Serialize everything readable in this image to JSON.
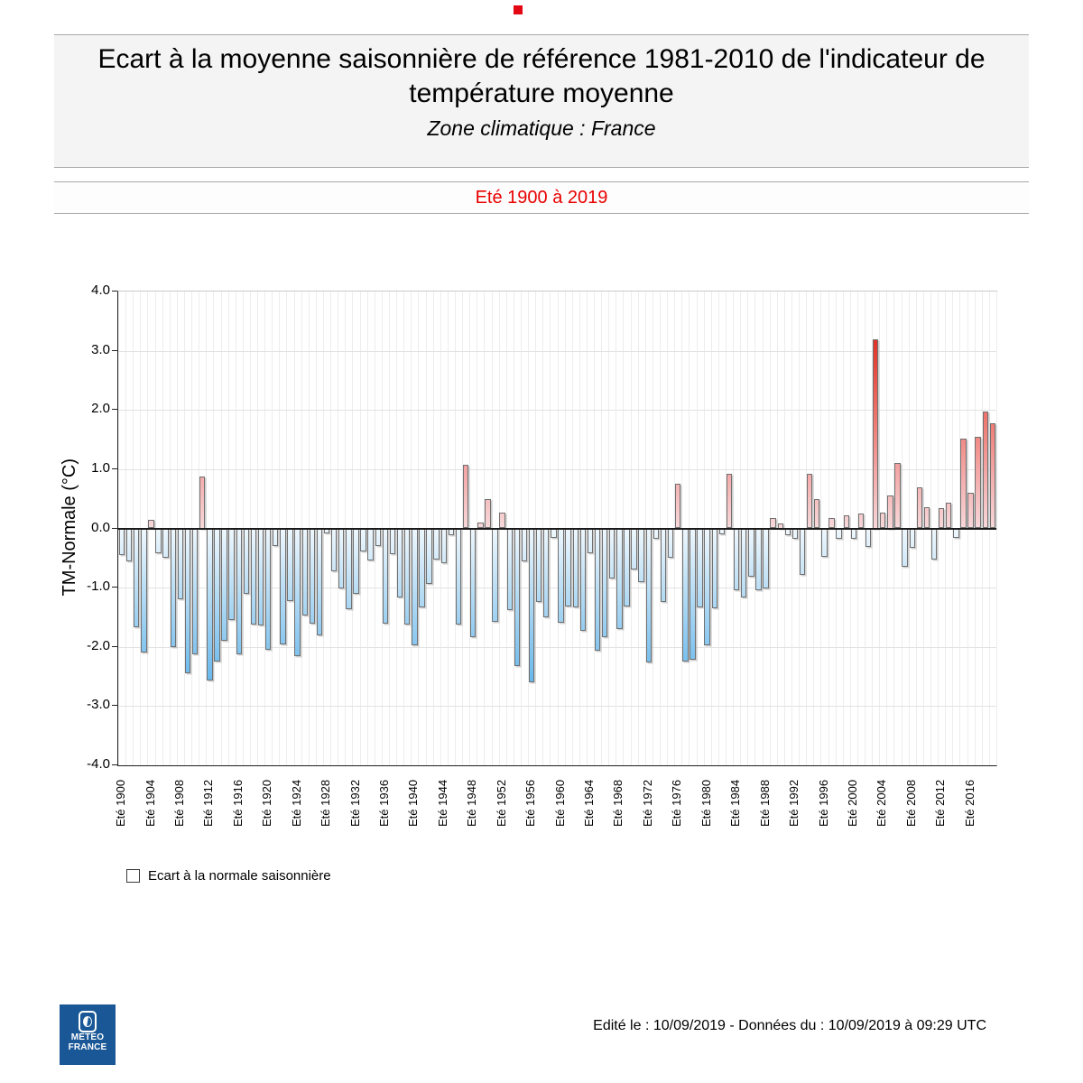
{
  "page": {
    "title": "Ecart à la moyenne saisonnière de référence 1981-2010 de l'indicateur de température moyenne",
    "subtitle": "Zone climatique : France",
    "period": "Eté 1900 à 2019",
    "footer": "Edité le : 10/09/2019 - Données du : 10/09/2019 à 09:29 UTC",
    "logo": {
      "line1": "METEO",
      "line2": "FRANCE",
      "bg_color": "#1a5796"
    }
  },
  "legend": {
    "label": "Ecart à la normale saisonnière"
  },
  "chart_data": {
    "type": "bar",
    "title": "Eté 1900 à 2019",
    "ylabel": "TM-Normale (°C)",
    "ylim": [
      -4.0,
      4.0
    ],
    "ytick_labels": [
      "4.0",
      "3.0",
      "2.0",
      "1.0",
      "0.0",
      "-1.0",
      "-2.0",
      "-3.0",
      "-4.0"
    ],
    "grid": true,
    "start_year": 1900,
    "end_year": 2019,
    "series_name": "Ecart à la normale saisonnière",
    "values": [
      -0.45,
      -0.55,
      -1.67,
      -2.09,
      0.15,
      -0.42,
      -0.5,
      -2.0,
      -1.2,
      -2.44,
      -2.13,
      0.88,
      -2.56,
      -2.24,
      -1.9,
      -1.54,
      -2.12,
      -1.11,
      -1.62,
      -1.64,
      -2.05,
      -0.3,
      -1.95,
      -1.23,
      -2.15,
      -1.47,
      -1.6,
      -1.8,
      -0.08,
      -0.73,
      -1.01,
      -1.37,
      -1.11,
      -0.39,
      -0.54,
      -0.29,
      -1.6,
      -0.44,
      -1.16,
      -1.62,
      -1.98,
      -1.34,
      -0.93,
      -0.52,
      -0.58,
      -0.12,
      -1.62,
      1.07,
      -1.83,
      0.1,
      0.5,
      -1.57,
      0.26,
      -1.38,
      -2.32,
      -0.55,
      -2.6,
      -1.24,
      -1.5,
      -0.16,
      -1.59,
      -1.32,
      -1.34,
      -1.73,
      -0.42,
      -2.06,
      -1.83,
      -0.85,
      -1.7,
      -1.32,
      -0.7,
      -0.9,
      -2.26,
      -0.18,
      -1.24,
      -0.5,
      0.76,
      -2.24,
      -2.21,
      -1.34,
      -1.98,
      -1.35,
      -0.1,
      0.92,
      -1.05,
      -1.17,
      -0.82,
      -1.05,
      -1.02,
      0.18,
      0.08,
      -0.11,
      -0.18,
      -0.78,
      0.92,
      0.5,
      -0.48,
      0.18,
      -0.18,
      0.22,
      -0.17,
      0.25,
      -0.31,
      3.2,
      0.26,
      0.56,
      1.11,
      -0.64,
      -0.32,
      0.7,
      0.36,
      -0.53,
      0.34,
      0.43,
      -0.16,
      1.51,
      0.6,
      1.55,
      1.98,
      1.77
    ],
    "xtick_labels": [
      "Eté 1900",
      "Eté 1904",
      "Eté 1908",
      "Eté 1912",
      "Eté 1916",
      "Eté 1920",
      "Eté 1924",
      "Eté 1928",
      "Eté 1932",
      "Eté 1936",
      "Eté 1940",
      "Eté 1944",
      "Eté 1948",
      "Eté 1952",
      "Eté 1956",
      "Eté 1960",
      "Eté 1964",
      "Eté 1968",
      "Eté 1972",
      "Eté 1976",
      "Eté 1980",
      "Eté 1984",
      "Eté 1988",
      "Eté 1992",
      "Eté 1996",
      "Eté 2000",
      "Eté 2004",
      "Eté 2008",
      "Eté 2012",
      "Eté 2016"
    ],
    "colors": {
      "positive": "#e02d22",
      "positive_light": "#f7d7d9",
      "negative": "#3f9edd",
      "negative_light": "#eef7fd",
      "zero_line": "#1a1a1a",
      "period_text": "#e80000"
    },
    "legend_position": "bottom-left"
  }
}
